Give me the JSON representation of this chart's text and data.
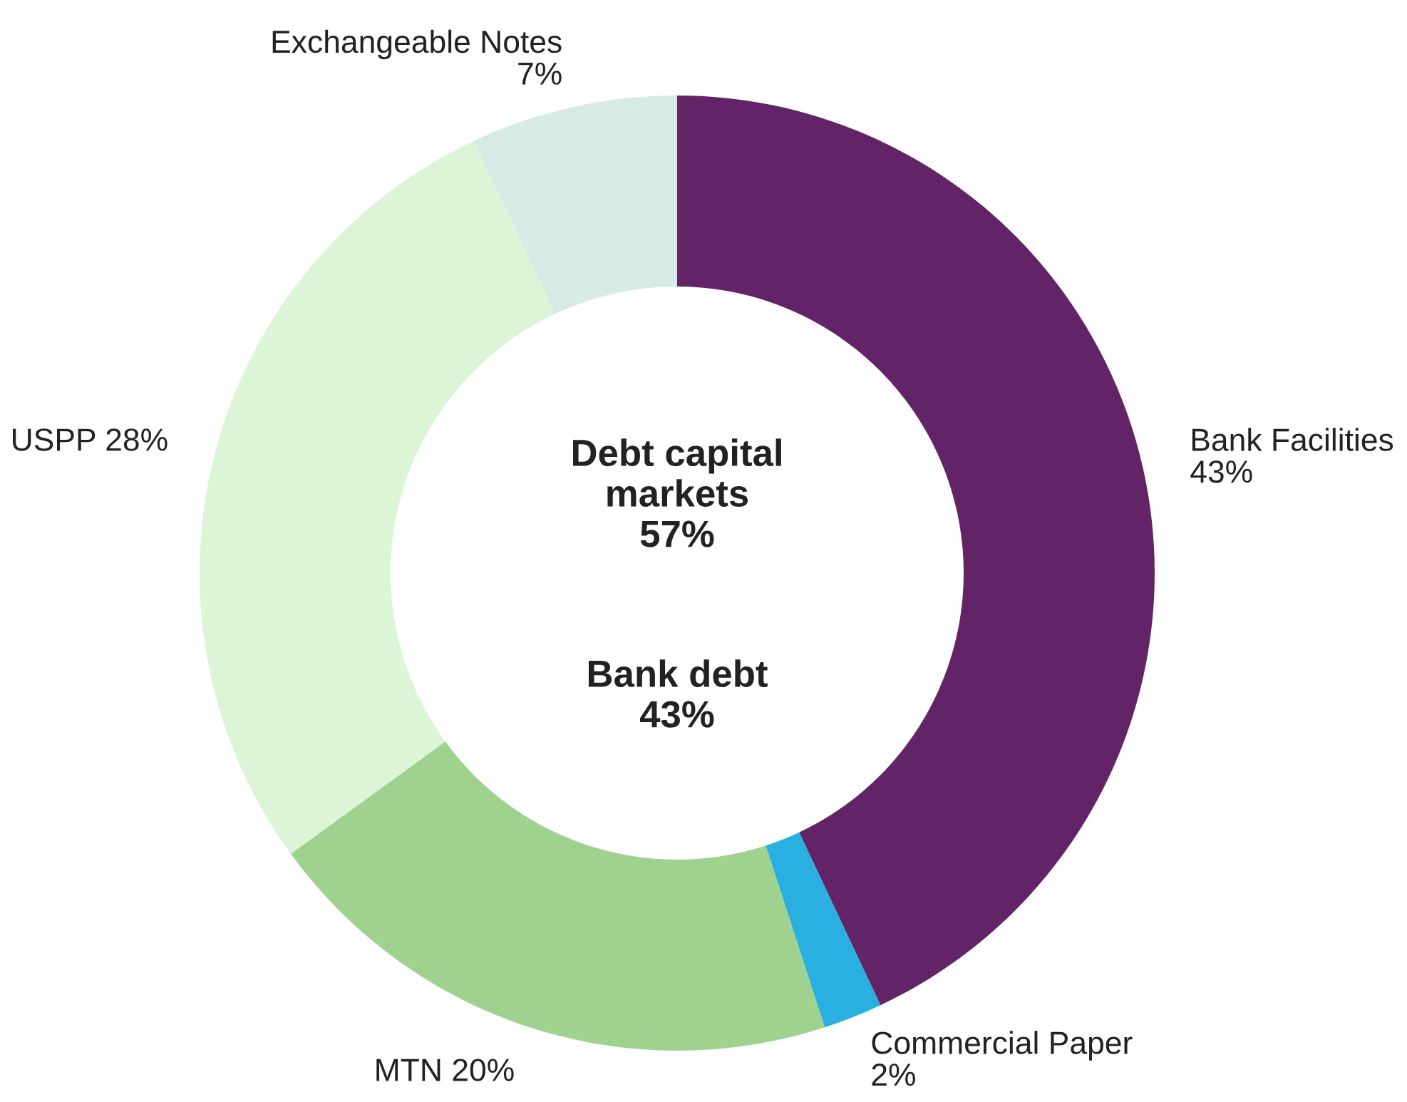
{
  "chart_data": {
    "type": "donut",
    "categories": [
      "Bank Facilities",
      "Commercial Paper",
      "MTN",
      "USPP",
      "Exchangeable Notes"
    ],
    "values": [
      43,
      2,
      20,
      28,
      7
    ],
    "colors": [
      "#622466",
      "#2ab0e0",
      "#9fd18f",
      "#dcf5d6",
      "#d6ebe6"
    ],
    "value_labels": [
      "43%",
      "2%",
      "20%",
      "28%",
      "7%"
    ],
    "annotations": [
      "Debt capital\nmarkets\n57%",
      "Bank debt\n43%"
    ]
  }
}
